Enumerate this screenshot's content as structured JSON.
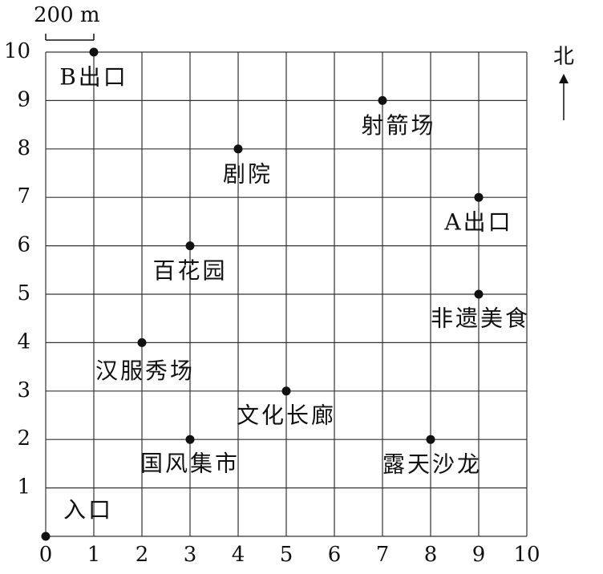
{
  "chart_data": {
    "type": "scatter",
    "x": [
      0,
      1,
      7,
      4,
      9,
      3,
      9,
      2,
      5,
      3,
      8
    ],
    "y": [
      0,
      10,
      9,
      8,
      7,
      6,
      5,
      4,
      3,
      2,
      2
    ],
    "labels": [
      "入口",
      "B出口",
      "射箭场",
      "剧院",
      "A出口",
      "百花园",
      "非遗美食",
      "汉服秀场",
      "文化长廊",
      "国风集市",
      "露天沙龙"
    ],
    "color": "#111111",
    "xlim": [
      0,
      10
    ],
    "ylim": [
      0,
      10
    ],
    "xticks": [
      0,
      1,
      2,
      3,
      4,
      5,
      6,
      7,
      8,
      9,
      10
    ],
    "yticks": [
      0,
      1,
      2,
      3,
      4,
      5,
      6,
      7,
      8,
      9,
      10
    ],
    "grid": true,
    "scale_label": "200 m",
    "north_label": "北"
  }
}
